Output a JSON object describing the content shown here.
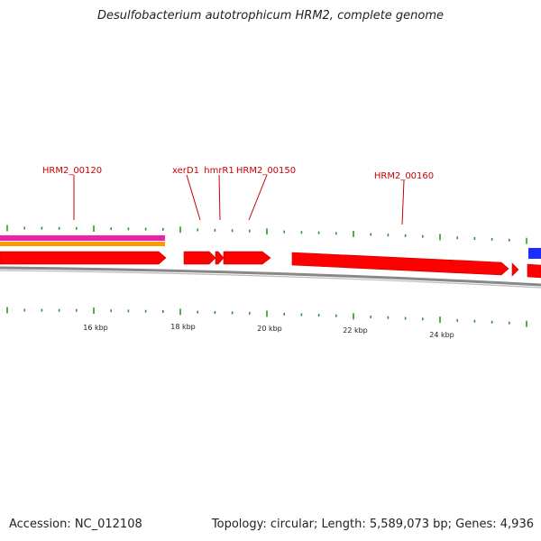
{
  "title": "Desulfobacterium autotrophicum HRM2, complete genome",
  "footer": {
    "accession": "Accession: NC_012108",
    "summary": "Topology: circular; Length: 5,589,073 bp; Genes: 4,936"
  },
  "colors": {
    "gene": "#ff0000",
    "gene_dark": "#c00000",
    "track_magenta": "#ee22aa",
    "track_orange": "#ff9900",
    "track_blue": "#1a2cff",
    "backbone": "#888888",
    "tick": "#2a9a2a",
    "label": "#cc0000",
    "scale_text": "#222222"
  },
  "gene_labels": [
    {
      "id": "label-hrm2-00120",
      "text": "HRM2_00120"
    },
    {
      "id": "label-xerd1",
      "text": "xerD1"
    },
    {
      "id": "label-hmrr1",
      "text": "hmrR1"
    },
    {
      "id": "label-hrm2-00150",
      "text": "HRM2_00150"
    },
    {
      "id": "label-hrm2-00160",
      "text": "HRM2_00160"
    }
  ],
  "scale_labels": [
    "16 kbp",
    "18 kbp",
    "20 kbp",
    "22 kbp",
    "24 kbp"
  ]
}
